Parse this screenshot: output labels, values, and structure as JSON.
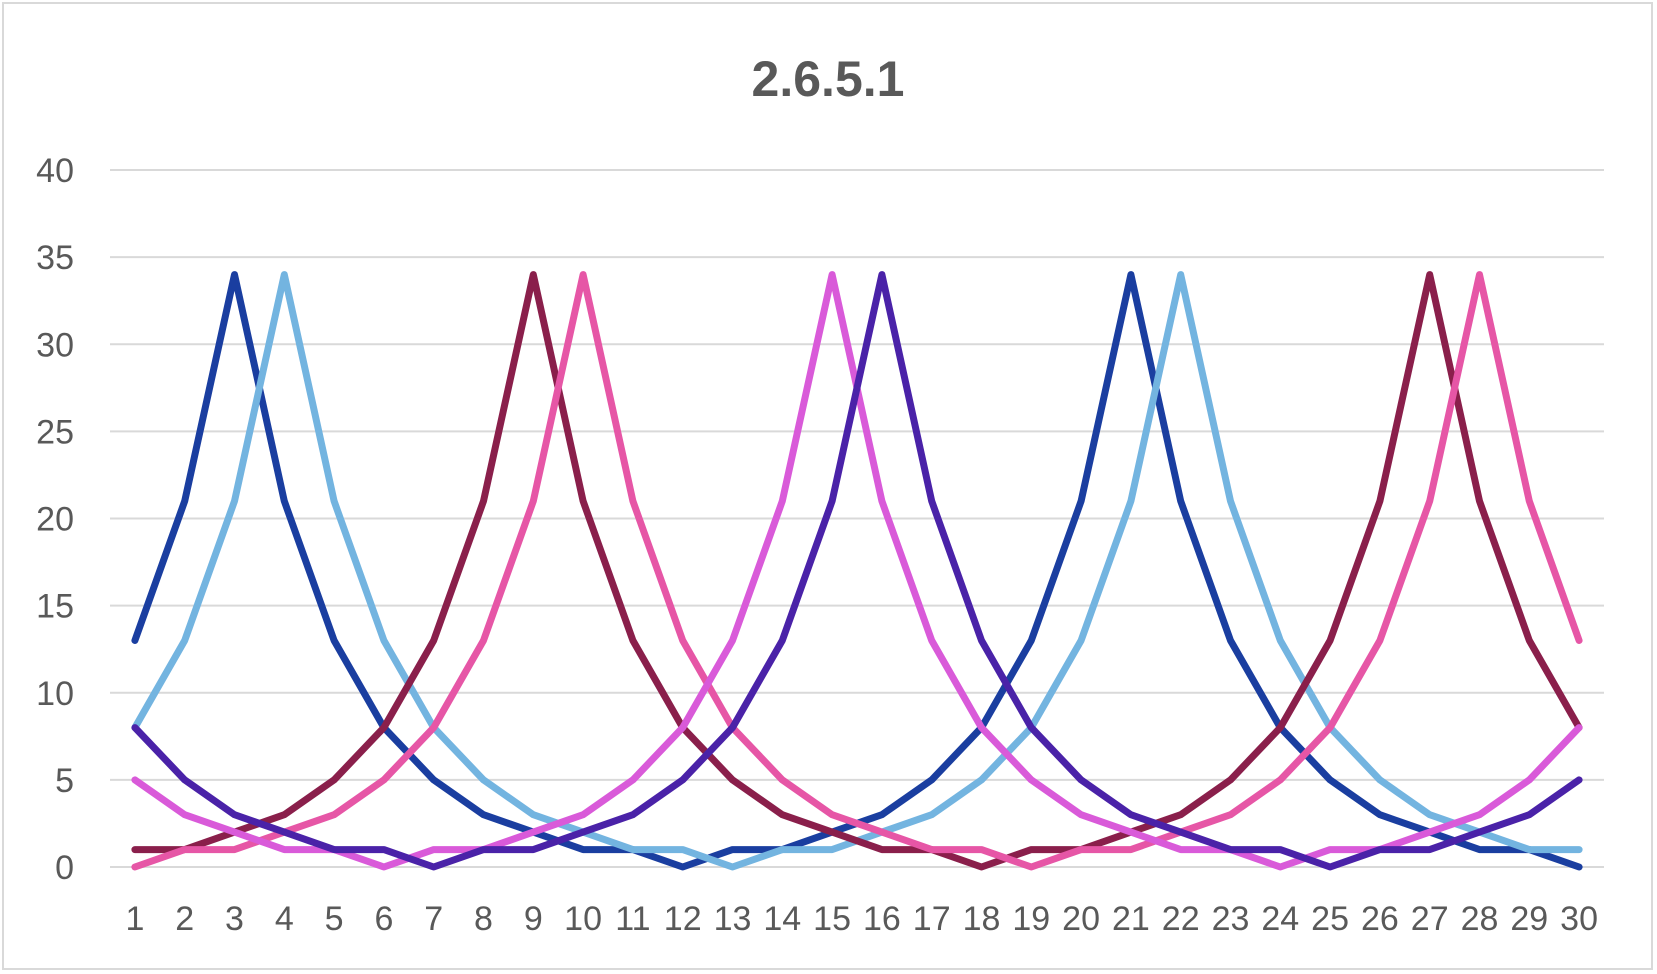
{
  "chart_data": {
    "type": "line",
    "title": "2.6.5.1",
    "xlabel": "",
    "ylabel": "",
    "x": [
      1,
      2,
      3,
      4,
      5,
      6,
      7,
      8,
      9,
      10,
      11,
      12,
      13,
      14,
      15,
      16,
      17,
      18,
      19,
      20,
      21,
      22,
      23,
      24,
      25,
      26,
      27,
      28,
      29,
      30
    ],
    "ylim": [
      0,
      40
    ],
    "yticks": [
      0,
      5,
      10,
      15,
      20,
      25,
      30,
      35,
      40
    ],
    "grid": true,
    "legend": "none",
    "series": [
      {
        "color": "#1a3ea0",
        "values": [
          13,
          21,
          34,
          21,
          13,
          8,
          5,
          3,
          2,
          1,
          1,
          0,
          1,
          1,
          2,
          3,
          5,
          8,
          13,
          21,
          34,
          21,
          13,
          8,
          5,
          3,
          2,
          1,
          1,
          0
        ]
      },
      {
        "color": "#73b4e0",
        "values": [
          8,
          13,
          21,
          34,
          21,
          13,
          8,
          5,
          3,
          2,
          1,
          1,
          0,
          1,
          1,
          2,
          3,
          5,
          8,
          13,
          21,
          34,
          21,
          13,
          8,
          5,
          3,
          2,
          1,
          1
        ]
      },
      {
        "color": "#8a1f4b",
        "values": [
          1,
          1,
          2,
          3,
          5,
          8,
          13,
          21,
          34,
          21,
          13,
          8,
          5,
          3,
          2,
          1,
          1,
          0,
          1,
          1,
          2,
          3,
          5,
          8,
          13,
          21,
          34,
          21,
          13,
          8
        ]
      },
      {
        "color": "#e656a6",
        "values": [
          0,
          1,
          1,
          2,
          3,
          5,
          8,
          13,
          21,
          34,
          21,
          13,
          8,
          5,
          3,
          2,
          1,
          1,
          0,
          1,
          1,
          2,
          3,
          5,
          8,
          13,
          21,
          34,
          21,
          13
        ]
      },
      {
        "color": "#d95ad9",
        "values": [
          5,
          3,
          2,
          1,
          1,
          0,
          1,
          1,
          2,
          3,
          5,
          8,
          13,
          21,
          34,
          21,
          13,
          8,
          5,
          3,
          2,
          1,
          1,
          0,
          1,
          1,
          2,
          3,
          5,
          8
        ]
      },
      {
        "color": "#4a22a8",
        "values": [
          8,
          5,
          3,
          2,
          1,
          1,
          0,
          1,
          1,
          2,
          3,
          5,
          8,
          13,
          21,
          34,
          21,
          13,
          8,
          5,
          3,
          2,
          1,
          1,
          0,
          1,
          1,
          2,
          3,
          5
        ]
      }
    ]
  }
}
